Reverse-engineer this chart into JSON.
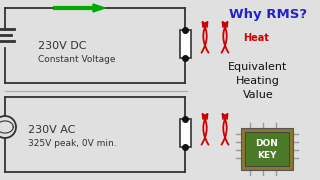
{
  "bg_color": "#e0e0e0",
  "title": "Why RMS?",
  "title_color": "#2222cc",
  "dc_label1": "230V DC",
  "dc_label2": "Constant Voltage",
  "ac_label1": "230V AC",
  "ac_label2": "325V peak, 0V min.",
  "heat_label": "Heat",
  "heat_color": "#cc0000",
  "equiv_label": "Equivalent\nHeating\nValue",
  "equiv_color": "#111111",
  "circuit_color": "#333333",
  "arrow_color": "#00aa00",
  "dot_color": "#111111",
  "resistor_fill": "#ffffff",
  "resistor_edge": "#333333",
  "chip_outer": "#8B7536",
  "chip_inner": "#4a7a28",
  "chip_text": "#ffffff",
  "chip_pin": "#999999",
  "sep_color": "#aaaaaa"
}
